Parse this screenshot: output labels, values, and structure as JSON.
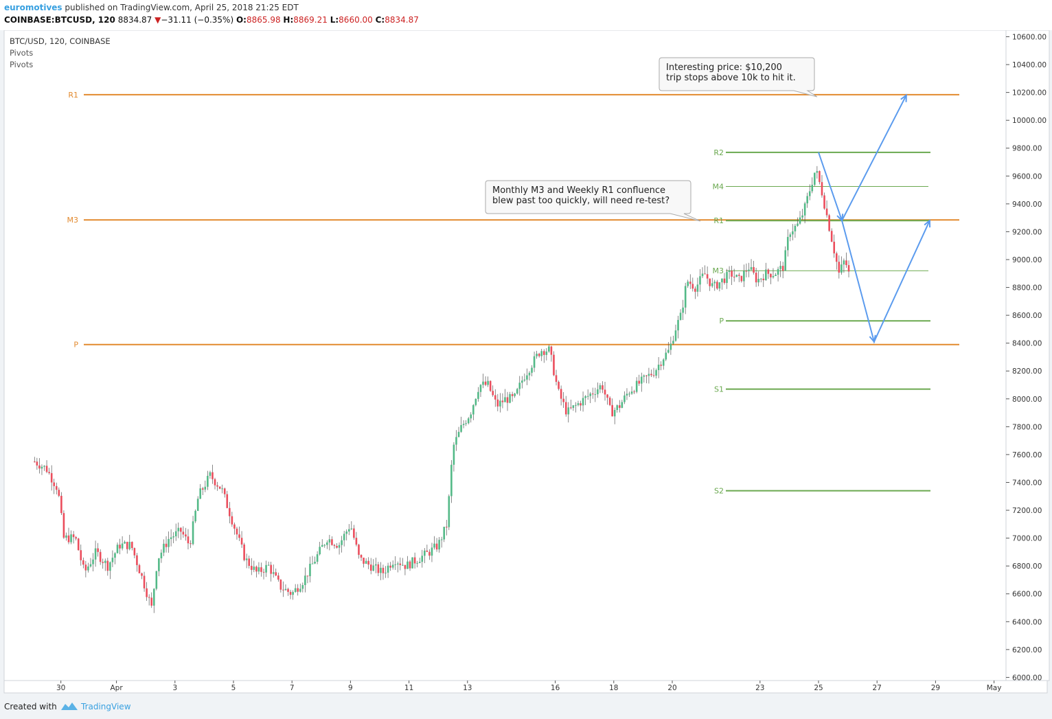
{
  "header": {
    "author": "euromotives",
    "published": " published on TradingView.com, April 25, 2018 21:25 EDT",
    "symbol": "COINBASE:BTCUSD, 120",
    "last": "8834.87",
    "change": "−31.11 (−0.35%)",
    "o_label": "O:",
    "o": "8865.98",
    "h_label": "H:",
    "h": "8869.21",
    "l_label": "L:",
    "l": "8660.00",
    "c_label": "C:",
    "c": "8834.87"
  },
  "legend": {
    "series": "BTC/USD, 120, COINBASE",
    "indicator1": "Pivots",
    "indicator2": "Pivots"
  },
  "footer": {
    "created": "Created with",
    "brand": "TradingView"
  },
  "colors": {
    "up": "#53b987",
    "down": "#eb4d5c",
    "monthly_pivot": "#e2892d",
    "weekly_pivot": "#6aa84f",
    "drawing": "#5b9bee",
    "axis_text": "#333333"
  },
  "chart_data": {
    "type": "candlestick",
    "title": "BTC/USD, 120, COINBASE",
    "ylim": [
      6000,
      10700
    ],
    "yticks": [
      "10600.00",
      "10400.00",
      "10200.00",
      "10000.00",
      "9800.00",
      "9600.00",
      "9400.00",
      "9200.00",
      "9000.00",
      "8800.00",
      "8600.00",
      "8400.00",
      "8200.00",
      "8000.00",
      "7800.00",
      "7600.00",
      "7400.00",
      "7200.00",
      "7000.00",
      "6800.00",
      "6600.00",
      "6400.00",
      "6200.00",
      "6000.00"
    ],
    "xticks": [
      {
        "label": "30",
        "day": -0.9
      },
      {
        "label": "Apr",
        "day": 1
      },
      {
        "label": "3",
        "day": 3
      },
      {
        "label": "5",
        "day": 5
      },
      {
        "label": "7",
        "day": 7
      },
      {
        "label": "9",
        "day": 9
      },
      {
        "label": "11",
        "day": 11
      },
      {
        "label": "13",
        "day": 13
      },
      {
        "label": "16",
        "day": 16
      },
      {
        "label": "18",
        "day": 18
      },
      {
        "label": "20",
        "day": 20
      },
      {
        "label": "23",
        "day": 23
      },
      {
        "label": "25",
        "day": 25
      },
      {
        "label": "27",
        "day": 27
      },
      {
        "label": "29",
        "day": 29
      },
      {
        "label": "May",
        "day": 31
      }
    ],
    "series_path": [
      [
        -1.8,
        7550
      ],
      [
        -1.4,
        7500
      ],
      [
        -1.0,
        7350
      ],
      [
        -0.8,
        7000
      ],
      [
        -0.4,
        7000
      ],
      [
        -0.1,
        6750
      ],
      [
        0.3,
        6900
      ],
      [
        0.7,
        6800
      ],
      [
        1.1,
        6950
      ],
      [
        1.5,
        6950
      ],
      [
        1.9,
        6700
      ],
      [
        2.2,
        6500
      ],
      [
        2.4,
        6850
      ],
      [
        2.8,
        7000
      ],
      [
        3.2,
        7050
      ],
      [
        3.5,
        6950
      ],
      [
        3.8,
        7300
      ],
      [
        4.2,
        7450
      ],
      [
        4.6,
        7350
      ],
      [
        5.0,
        7100
      ],
      [
        5.4,
        6850
      ],
      [
        5.8,
        6750
      ],
      [
        6.2,
        6800
      ],
      [
        6.6,
        6650
      ],
      [
        7.0,
        6600
      ],
      [
        7.4,
        6700
      ],
      [
        7.8,
        6850
      ],
      [
        8.2,
        7000
      ],
      [
        8.6,
        6950
      ],
      [
        9.0,
        7100
      ],
      [
        9.3,
        6850
      ],
      [
        9.7,
        6800
      ],
      [
        10.1,
        6750
      ],
      [
        10.5,
        6850
      ],
      [
        10.9,
        6800
      ],
      [
        11.3,
        6850
      ],
      [
        11.7,
        6900
      ],
      [
        12.0,
        6950
      ],
      [
        12.3,
        7100
      ],
      [
        12.5,
        7650
      ],
      [
        12.8,
        7800
      ],
      [
        13.1,
        7900
      ],
      [
        13.4,
        8100
      ],
      [
        13.7,
        8100
      ],
      [
        14.0,
        7950
      ],
      [
        14.3,
        8000
      ],
      [
        14.6,
        8000
      ],
      [
        14.9,
        8150
      ],
      [
        15.2,
        8250
      ],
      [
        15.5,
        8350
      ],
      [
        15.8,
        8350
      ],
      [
        16.1,
        8050
      ],
      [
        16.4,
        7900
      ],
      [
        16.7,
        7950
      ],
      [
        17.0,
        8000
      ],
      [
        17.3,
        8050
      ],
      [
        17.6,
        8100
      ],
      [
        17.9,
        7900
      ],
      [
        18.2,
        7950
      ],
      [
        18.5,
        8050
      ],
      [
        18.8,
        8100
      ],
      [
        19.1,
        8150
      ],
      [
        19.4,
        8200
      ],
      [
        19.7,
        8300
      ],
      [
        19.9,
        8350
      ],
      [
        20.1,
        8500
      ],
      [
        20.3,
        8600
      ],
      [
        20.5,
        8850
      ],
      [
        20.8,
        8800
      ],
      [
        21.1,
        8900
      ],
      [
        21.4,
        8800
      ],
      [
        21.7,
        8850
      ],
      [
        22.0,
        8900
      ],
      [
        22.3,
        8850
      ],
      [
        22.6,
        8950
      ],
      [
        22.9,
        8850
      ],
      [
        23.2,
        8900
      ],
      [
        23.5,
        8900
      ],
      [
        23.8,
        8950
      ],
      [
        24.0,
        9200
      ],
      [
        24.3,
        9250
      ],
      [
        24.5,
        9350
      ],
      [
        24.7,
        9500
      ],
      [
        24.9,
        9650
      ],
      [
        25.1,
        9500
      ],
      [
        25.3,
        9300
      ],
      [
        25.5,
        9100
      ],
      [
        25.7,
        8900
      ],
      [
        25.9,
        9000
      ],
      [
        26.1,
        8850
      ]
    ],
    "monthly_pivots": [
      {
        "label": "R1",
        "value": 10184
      },
      {
        "label": "M3",
        "value": 9285
      },
      {
        "label": "P",
        "value": 8390
      }
    ],
    "weekly_pivots": [
      {
        "label": "R2",
        "value": 9770
      },
      {
        "label": "M4",
        "value": 9525
      },
      {
        "label": "R1",
        "value": 9280
      },
      {
        "label": "M3",
        "value": 8920
      },
      {
        "label": "P",
        "value": 8560
      },
      {
        "label": "S1",
        "value": 8070
      },
      {
        "label": "S2",
        "value": 7340
      }
    ],
    "annotations": [
      {
        "line1": "Monthly M3 and Weekly R1 confluence",
        "line2": "blew past too quickly, will need re-test?"
      },
      {
        "line1": "Interesting price: $10,200",
        "line2": "trip stops above 10k to hit it."
      }
    ],
    "projection": [
      [
        25.0,
        9770
      ],
      [
        25.8,
        9280
      ],
      [
        28.0,
        10180
      ]
    ],
    "projection2": [
      [
        25.8,
        9280
      ],
      [
        26.9,
        8410
      ],
      [
        28.8,
        9280
      ]
    ]
  }
}
